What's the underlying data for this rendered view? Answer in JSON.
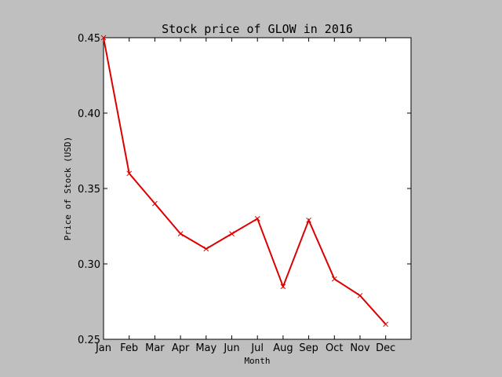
{
  "chart_data": {
    "type": "line",
    "title": "Stock price of GLOW in 2016",
    "xlabel": "Month",
    "ylabel": "Price of Stock (USD)",
    "categories": [
      "Jan",
      "Feb",
      "Mar",
      "Apr",
      "May",
      "Jun",
      "Jul",
      "Aug",
      "Sep",
      "Oct",
      "Nov",
      "Dec"
    ],
    "series": [
      {
        "values": [
          0.45,
          0.36,
          0.34,
          0.32,
          0.31,
          0.32,
          0.33,
          0.285,
          0.329,
          0.29,
          0.279,
          0.26
        ],
        "color": "#dd0000",
        "marker": "x"
      }
    ],
    "ylim": [
      0.25,
      0.45
    ],
    "yticks": [
      "0.25",
      "0.30",
      "0.35",
      "0.40",
      "0.45"
    ],
    "grid": false,
    "background": "#bfbfbf",
    "plot_background": "#ffffff"
  }
}
